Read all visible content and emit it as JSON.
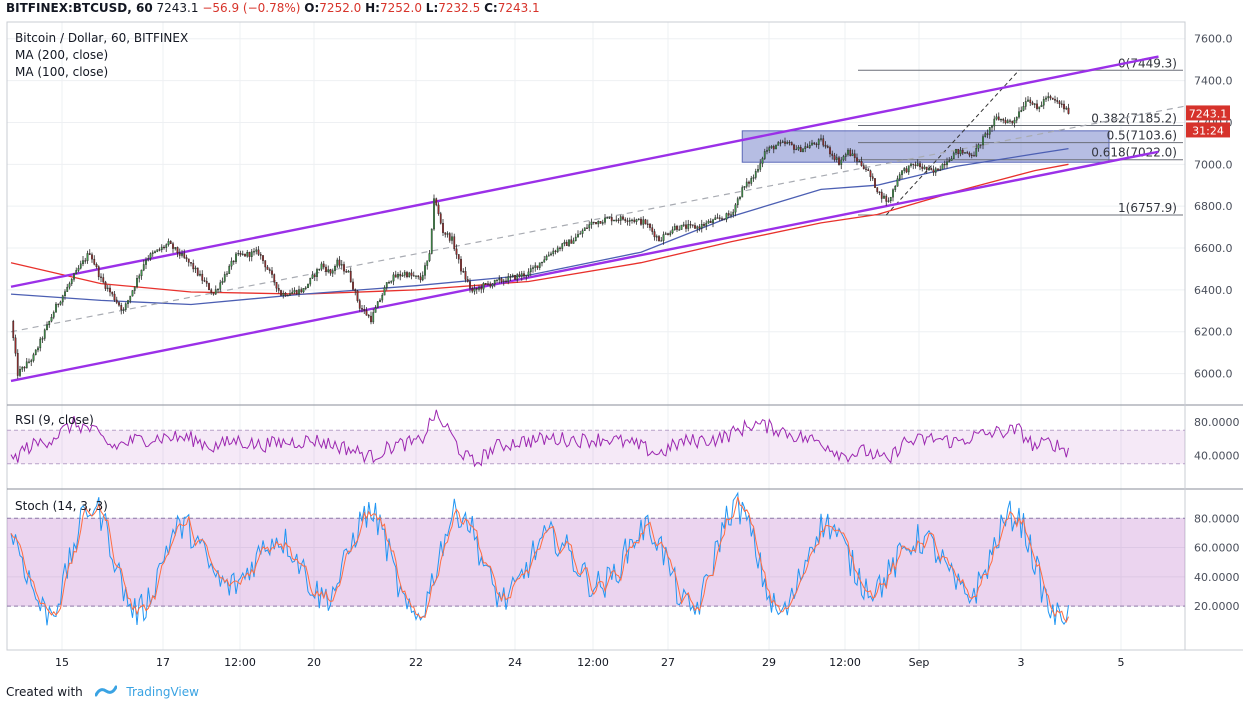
{
  "header": {
    "symbol": "BITFINEX:BTCUSD, 60",
    "last": "7243.1",
    "change": "−56.9 (−0.78%)",
    "open_label": "O:",
    "open": "7252.0",
    "high_label": "H:",
    "high": "7252.0",
    "low_label": "L:",
    "low": "7232.5",
    "close_label": "C:",
    "close": "7243.1"
  },
  "legend": {
    "title": "Bitcoin / Dollar, 60, BITFINEX",
    "ma200": "MA (200, close)",
    "ma100": "MA (100, close)"
  },
  "footer": {
    "created_with": "Created with",
    "brand": "TradingView"
  },
  "colors": {
    "up": "#3f9a4a",
    "down": "#9c2b2b",
    "channel": "#9b30e8",
    "ma200": "#e8312c",
    "ma100": "#4c5fb3",
    "rsi": "#9c27b0",
    "stoch_k": "#2196f3",
    "stoch_d": "#ff6d43",
    "zone": "#7a87cc"
  },
  "chart_data": [
    {
      "type": "candlestick",
      "title": "Bitcoin / Dollar, 60, BITFINEX",
      "y_ticks": [
        "6000.0",
        "6200.0",
        "6400.0",
        "6600.0",
        "6800.0",
        "7000.0",
        "7200.0",
        "7400.0",
        "7600.0"
      ],
      "ylim": [
        5850,
        7680
      ],
      "x_ticks": [
        "15",
        "17",
        "12:00",
        "20",
        "22",
        "24",
        "12:00",
        "27",
        "29",
        "12:00",
        "Sep",
        "3",
        "5"
      ],
      "price_tag": {
        "value": "7243.1",
        "countdown": "31:24"
      },
      "anchors": [
        [
          0,
          6250
        ],
        [
          3,
          6000
        ],
        [
          10,
          6080
        ],
        [
          20,
          6320
        ],
        [
          30,
          6500
        ],
        [
          35,
          6580
        ],
        [
          40,
          6450
        ],
        [
          50,
          6300
        ],
        [
          60,
          6550
        ],
        [
          70,
          6620
        ],
        [
          80,
          6520
        ],
        [
          90,
          6380
        ],
        [
          100,
          6560
        ],
        [
          110,
          6580
        ],
        [
          120,
          6380
        ],
        [
          130,
          6400
        ],
        [
          138,
          6520
        ],
        [
          142,
          6480
        ],
        [
          145,
          6530
        ],
        [
          150,
          6480
        ],
        [
          155,
          6320
        ],
        [
          160,
          6260
        ],
        [
          168,
          6450
        ],
        [
          175,
          6480
        ],
        [
          182,
          6450
        ],
        [
          186,
          6560
        ],
        [
          188,
          6840
        ],
        [
          192,
          6680
        ],
        [
          196,
          6640
        ],
        [
          200,
          6500
        ],
        [
          205,
          6390
        ],
        [
          210,
          6420
        ],
        [
          220,
          6450
        ],
        [
          230,
          6480
        ],
        [
          240,
          6580
        ],
        [
          250,
          6640
        ],
        [
          258,
          6720
        ],
        [
          265,
          6740
        ],
        [
          275,
          6740
        ],
        [
          282,
          6720
        ],
        [
          288,
          6640
        ],
        [
          295,
          6700
        ],
        [
          305,
          6700
        ],
        [
          320,
          6760
        ],
        [
          325,
          6880
        ],
        [
          330,
          6940
        ],
        [
          335,
          7060
        ],
        [
          340,
          7090
        ],
        [
          345,
          7100
        ],
        [
          350,
          7070
        ],
        [
          360,
          7110
        ],
        [
          368,
          7010
        ],
        [
          372,
          7060
        ],
        [
          380,
          6980
        ],
        [
          386,
          6860
        ],
        [
          390,
          6820
        ],
        [
          395,
          6960
        ],
        [
          402,
          7000
        ],
        [
          410,
          6960
        ],
        [
          420,
          7060
        ],
        [
          428,
          7050
        ],
        [
          432,
          7120
        ],
        [
          438,
          7220
        ],
        [
          445,
          7200
        ],
        [
          452,
          7320
        ],
        [
          456,
          7260
        ],
        [
          460,
          7320
        ],
        [
          466,
          7290
        ],
        [
          470,
          7250
        ]
      ],
      "levels": [
        {
          "label": "0(7449.3)",
          "value": 7449.3
        },
        {
          "label": "0.382(7185.2)",
          "value": 7185.2
        },
        {
          "label": "0.5(7103.6)",
          "value": 7103.6
        },
        {
          "label": "0.618(7022.0)",
          "value": 7022.0
        },
        {
          "label": "1(6757.9)",
          "value": 6757.9
        }
      ],
      "channel": {
        "upper": [
          [
            0,
            6415
          ],
          [
            510,
            7515
          ]
        ],
        "lower": [
          [
            0,
            5965
          ],
          [
            510,
            7060
          ]
        ],
        "mid_dashed": [
          [
            0,
            6200
          ],
          [
            530,
            7295
          ]
        ]
      },
      "ma200": [
        [
          0,
          6530
        ],
        [
          40,
          6430
        ],
        [
          80,
          6390
        ],
        [
          130,
          6380
        ],
        [
          180,
          6400
        ],
        [
          230,
          6440
        ],
        [
          280,
          6530
        ],
        [
          320,
          6630
        ],
        [
          360,
          6720
        ],
        [
          385,
          6760
        ],
        [
          420,
          6870
        ],
        [
          455,
          6970
        ],
        [
          470,
          7000
        ]
      ],
      "ma100": [
        [
          0,
          6380
        ],
        [
          40,
          6350
        ],
        [
          80,
          6330
        ],
        [
          130,
          6380
        ],
        [
          180,
          6420
        ],
        [
          230,
          6470
        ],
        [
          280,
          6580
        ],
        [
          320,
          6750
        ],
        [
          360,
          6880
        ],
        [
          385,
          6900
        ],
        [
          420,
          6990
        ],
        [
          455,
          7050
        ],
        [
          470,
          7075
        ]
      ],
      "demand_zone": {
        "i0": 325,
        "i1": 488,
        "y0": 7010,
        "y1": 7160
      },
      "fib_trigger": {
        "from": [
          389,
          6757.9
        ],
        "to": [
          448,
          7449.3
        ]
      }
    },
    {
      "type": "line",
      "title": "RSI (9, close)",
      "y_ticks": [
        "80.0000",
        "40.0000"
      ],
      "ylim": [
        0,
        100
      ],
      "bands": [
        70,
        30
      ],
      "anchors": [
        [
          0,
          32
        ],
        [
          6,
          48
        ],
        [
          18,
          60
        ],
        [
          28,
          78
        ],
        [
          36,
          70
        ],
        [
          45,
          50
        ],
        [
          55,
          58
        ],
        [
          70,
          62
        ],
        [
          80,
          60
        ],
        [
          90,
          50
        ],
        [
          100,
          58
        ],
        [
          110,
          52
        ],
        [
          120,
          55
        ],
        [
          135,
          58
        ],
        [
          150,
          48
        ],
        [
          160,
          38
        ],
        [
          170,
          52
        ],
        [
          182,
          56
        ],
        [
          188,
          88
        ],
        [
          194,
          72
        ],
        [
          200,
          44
        ],
        [
          206,
          30
        ],
        [
          215,
          50
        ],
        [
          225,
          56
        ],
        [
          240,
          60
        ],
        [
          255,
          58
        ],
        [
          265,
          60
        ],
        [
          278,
          52
        ],
        [
          288,
          42
        ],
        [
          298,
          56
        ],
        [
          315,
          60
        ],
        [
          322,
          68
        ],
        [
          330,
          78
        ],
        [
          340,
          72
        ],
        [
          350,
          62
        ],
        [
          360,
          56
        ],
        [
          370,
          40
        ],
        [
          380,
          45
        ],
        [
          390,
          32
        ],
        [
          396,
          55
        ],
        [
          410,
          60
        ],
        [
          420,
          56
        ],
        [
          430,
          64
        ],
        [
          440,
          68
        ],
        [
          448,
          70
        ],
        [
          455,
          50
        ],
        [
          462,
          56
        ],
        [
          470,
          45
        ]
      ]
    },
    {
      "type": "line",
      "title": "Stoch (14, 3, 3)",
      "y_ticks": [
        "80.0000",
        "60.0000",
        "40.0000",
        "20.0000"
      ],
      "ylim": [
        -10,
        100
      ],
      "bands": [
        80,
        20
      ]
    }
  ]
}
